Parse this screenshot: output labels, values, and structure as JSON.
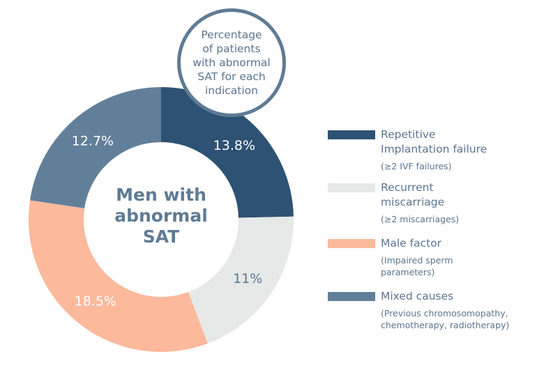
{
  "chart_data": {
    "type": "pie",
    "variant": "donut",
    "title": "Percentage of patients with abnormal SAT for each indication",
    "center_label": "Men with abnormal SAT",
    "categories": [
      "Repetitive Implantation failure",
      "Recurrent miscarriage",
      "Male factor",
      "Mixed causes"
    ],
    "values": [
      13.8,
      11,
      18.5,
      12.7
    ],
    "labels": [
      "13.8%",
      "11%",
      "18.5%",
      "12.7%"
    ],
    "colors": [
      "#2e5274",
      "#e6e9e8",
      "#fcb99b",
      "#627f99"
    ],
    "label_colors": [
      "#ffffff",
      "#5a7591",
      "#ffffff",
      "#ffffff"
    ],
    "legend_position": "right"
  },
  "legend": [
    {
      "title": "Repetitive Implantation failure",
      "title_lines": [
        "Repetitive",
        "Implantation failure"
      ],
      "sub_lines": [
        "(≥2 IVF failures)"
      ]
    },
    {
      "title": "Recurrent miscarriage",
      "title_lines": [
        "Recurrent",
        "miscarriage"
      ],
      "sub_lines": [
        "(≥2 miscarriages)"
      ]
    },
    {
      "title": "Male factor",
      "title_lines": [
        "Male factor"
      ],
      "sub_lines": [
        "(Impaired sperm",
        "parameters)"
      ]
    },
    {
      "title": "Mixed causes",
      "title_lines": [
        "Mixed causes"
      ],
      "sub_lines": [
        "(Previous chromosomopathy,",
        "chemotherapy, radiotherapy)"
      ]
    }
  ],
  "callout_lines": [
    "Percentage",
    "of patients",
    "with abnormal",
    "SAT for each",
    "indication"
  ],
  "center_lines": [
    "Men with",
    "abnormal",
    "SAT"
  ]
}
